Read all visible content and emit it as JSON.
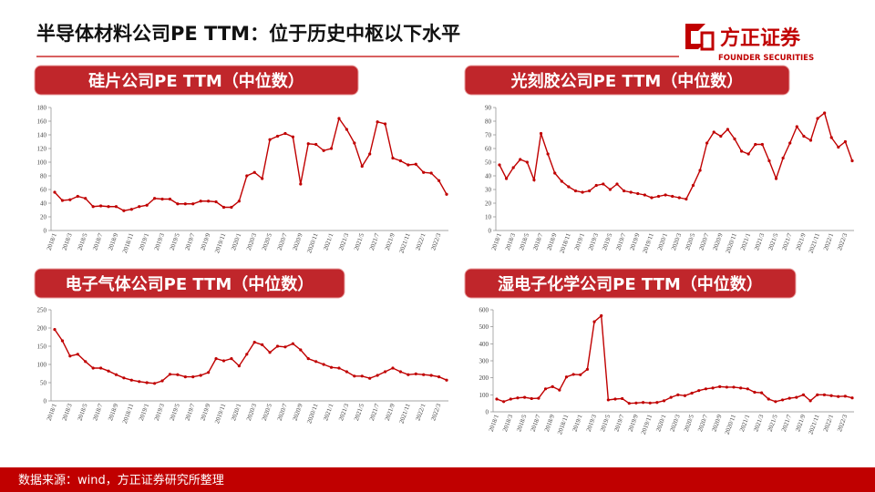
{
  "header": {
    "title": "半导体材料公司PE TTM：位于历史中枢以下水平",
    "logo": "方正证券",
    "logo_sub": "FOUNDER SECURITIES"
  },
  "footer": {
    "source": "数据来源：wind，方正证券研究所整理"
  },
  "chart_data": [
    {
      "type": "line",
      "title": "硅片公司PE TTM（中位数）",
      "categories": [
        "2018/1",
        null,
        "2018/3",
        null,
        "2018/5",
        null,
        "2018/7",
        null,
        "2018/9",
        null,
        "2018/11",
        null,
        "2019/1",
        null,
        "2019/3",
        null,
        "2019/5",
        null,
        "2019/7",
        null,
        "2019/9",
        null,
        "2019/11",
        null,
        "2020/1",
        null,
        "2020/3",
        null,
        "2020/5",
        null,
        "2020/7",
        null,
        "2020/9",
        null,
        "2020/11",
        null,
        "2021/1",
        null,
        "2021/3",
        null,
        "2021/5",
        null,
        "2021/7",
        null,
        "2021/9",
        null,
        "2021/11",
        null,
        "2022/1",
        null,
        "2022/3",
        null
      ],
      "series": [
        {
          "color": "#c00000",
          "values": [
            56,
            44,
            45,
            50,
            47,
            35,
            36,
            35,
            35,
            29,
            31,
            35,
            37,
            47,
            46,
            46,
            39,
            39,
            39,
            43,
            43,
            42,
            34,
            34,
            43,
            80,
            85,
            76,
            133,
            138,
            142,
            137,
            68,
            127,
            126,
            117,
            120,
            164,
            148,
            128,
            94,
            112,
            159,
            156,
            106,
            102,
            96,
            97,
            85,
            84,
            73,
            53
          ]
        }
      ],
      "ylim": [
        0,
        180
      ],
      "yticks": [
        0,
        20,
        40,
        60,
        80,
        100,
        120,
        140,
        160,
        180
      ]
    },
    {
      "type": "line",
      "title": "光刻胶公司PE TTM（中位数）",
      "categories": [
        "2018/1",
        null,
        "2018/3",
        null,
        "2018/5",
        null,
        "2018/7",
        null,
        "2018/9",
        null,
        "2018/11",
        null,
        "2019/1",
        null,
        "2019/3",
        null,
        "2019/5",
        null,
        "2019/7",
        null,
        "2019/9",
        null,
        "2019/11",
        null,
        "2020/1",
        null,
        "2020/3",
        null,
        "2020/5",
        null,
        "2020/7",
        null,
        "2020/9",
        null,
        "2020/11",
        null,
        "2021/1",
        null,
        "2021/3",
        null,
        "2021/5",
        null,
        "2021/7",
        null,
        "2021/9",
        null,
        "2021/11",
        null,
        "2022/1",
        null,
        "2022/3",
        null
      ],
      "series": [
        {
          "color": "#c00000",
          "values": [
            48,
            38,
            46,
            52,
            50,
            37,
            71,
            56,
            42,
            36,
            32,
            29,
            28,
            29,
            33,
            34,
            30,
            34,
            29,
            28,
            27,
            26,
            24,
            25,
            26,
            25,
            24,
            23,
            33,
            44,
            64,
            72,
            69,
            74,
            67,
            58,
            56,
            63,
            63,
            51,
            38,
            53,
            64,
            76,
            69,
            66,
            82,
            86,
            68,
            61,
            65,
            51
          ]
        }
      ],
      "ylim": [
        0,
        90
      ],
      "yticks": [
        0,
        10,
        20,
        30,
        40,
        50,
        60,
        70,
        80,
        90
      ]
    },
    {
      "type": "line",
      "title": "电子气体公司PE TTM（中位数）",
      "categories": [
        "2018/1",
        null,
        "2018/3",
        null,
        "2018/5",
        null,
        "2018/7",
        null,
        "2018/9",
        null,
        "2018/11",
        null,
        "2019/1",
        null,
        "2019/3",
        null,
        "2019/5",
        null,
        "2019/7",
        null,
        "2019/9",
        null,
        "2019/11",
        null,
        "2020/1",
        null,
        "2020/3",
        null,
        "2020/5",
        null,
        "2020/7",
        null,
        "2020/9",
        null,
        "2020/11",
        null,
        "2021/1",
        null,
        "2021/3",
        null,
        "2021/5",
        null,
        "2021/7",
        null,
        "2021/9",
        null,
        "2021/11",
        null,
        "2022/1",
        null,
        "2022/3",
        null
      ],
      "series": [
        {
          "color": "#c00000",
          "values": [
            196,
            165,
            123,
            128,
            108,
            90,
            90,
            82,
            72,
            63,
            57,
            53,
            50,
            48,
            55,
            73,
            72,
            66,
            66,
            70,
            78,
            116,
            110,
            116,
            96,
            128,
            161,
            154,
            133,
            150,
            148,
            157,
            140,
            116,
            108,
            100,
            92,
            90,
            80,
            68,
            68,
            62,
            70,
            80,
            90,
            80,
            72,
            74,
            72,
            70,
            66,
            57
          ]
        }
      ],
      "ylim": [
        0,
        250
      ],
      "yticks": [
        0,
        50,
        100,
        150,
        200,
        250
      ]
    },
    {
      "type": "line",
      "title": "湿电子化学公司PE TTM（中位数）",
      "categories": [
        "2018/1",
        null,
        "2018/3",
        null,
        "2018/5",
        null,
        "2018/7",
        null,
        "2018/9",
        null,
        "2018/11",
        null,
        "2019/1",
        null,
        "2019/3",
        null,
        "2019/5",
        null,
        "2019/7",
        null,
        "2019/9",
        null,
        "2019/11",
        null,
        "2020/1",
        null,
        "2020/3",
        null,
        "2020/5",
        null,
        "2020/7",
        null,
        "2020/9",
        null,
        "2020/11",
        null,
        "2021/1",
        null,
        "2021/3",
        null,
        "2021/5",
        null,
        "2021/7",
        null,
        "2021/9",
        null,
        "2021/11",
        null,
        "2022/1",
        null,
        "2022/3",
        null
      ],
      "series": [
        {
          "color": "#c00000",
          "values": [
            75,
            60,
            75,
            82,
            85,
            78,
            80,
            135,
            148,
            128,
            205,
            220,
            218,
            250,
            530,
            565,
            70,
            75,
            78,
            50,
            52,
            55,
            52,
            55,
            65,
            85,
            100,
            95,
            110,
            125,
            135,
            140,
            148,
            145,
            145,
            140,
            135,
            115,
            112,
            75,
            60,
            70,
            80,
            85,
            100,
            65,
            100,
            100,
            95,
            90,
            92,
            82
          ]
        }
      ],
      "ylim": [
        0,
        600
      ],
      "yticks": [
        0,
        100,
        200,
        300,
        400,
        500,
        600
      ]
    }
  ]
}
